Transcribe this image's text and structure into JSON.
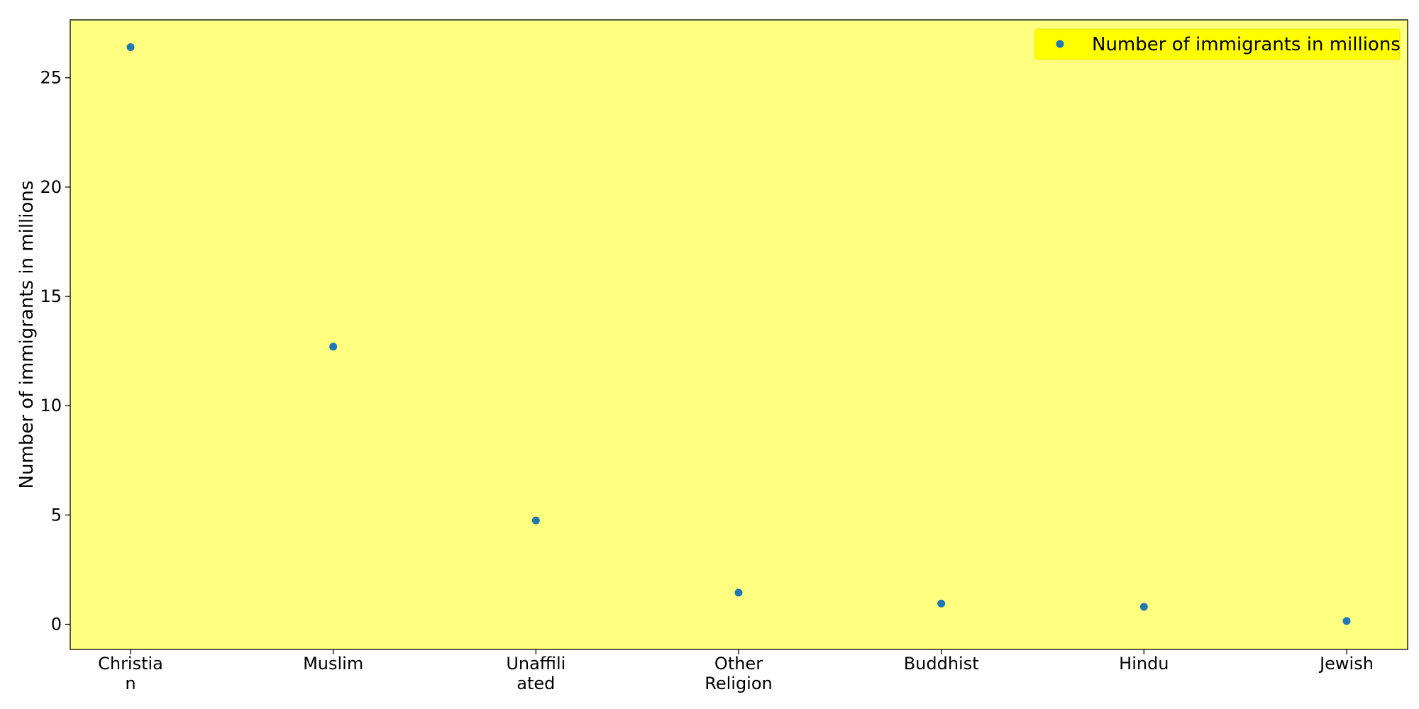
{
  "chart_data": {
    "type": "scatter",
    "categories": [
      [
        "Christia",
        "n"
      ],
      [
        "Muslim"
      ],
      [
        "Unaffili",
        "ated"
      ],
      [
        "Other",
        "Religion"
      ],
      [
        "Buddhist"
      ],
      [
        "Hindu"
      ],
      [
        "Jewish"
      ]
    ],
    "series": [
      {
        "name": "Number of immigrants in millions",
        "values": [
          26.4,
          12.7,
          4.75,
          1.45,
          0.95,
          0.8,
          0.15
        ],
        "color": "#1f77b4"
      }
    ],
    "title": "",
    "xlabel": "",
    "ylabel": "Number of immigrants in millions",
    "ylim": [
      -1.15,
      27.65
    ],
    "yticks": [
      0,
      5,
      10,
      15,
      20,
      25
    ],
    "grid": false,
    "legend": {
      "placement": "top-right",
      "background": "#ffff00"
    },
    "plot_background": "#ffff80"
  }
}
